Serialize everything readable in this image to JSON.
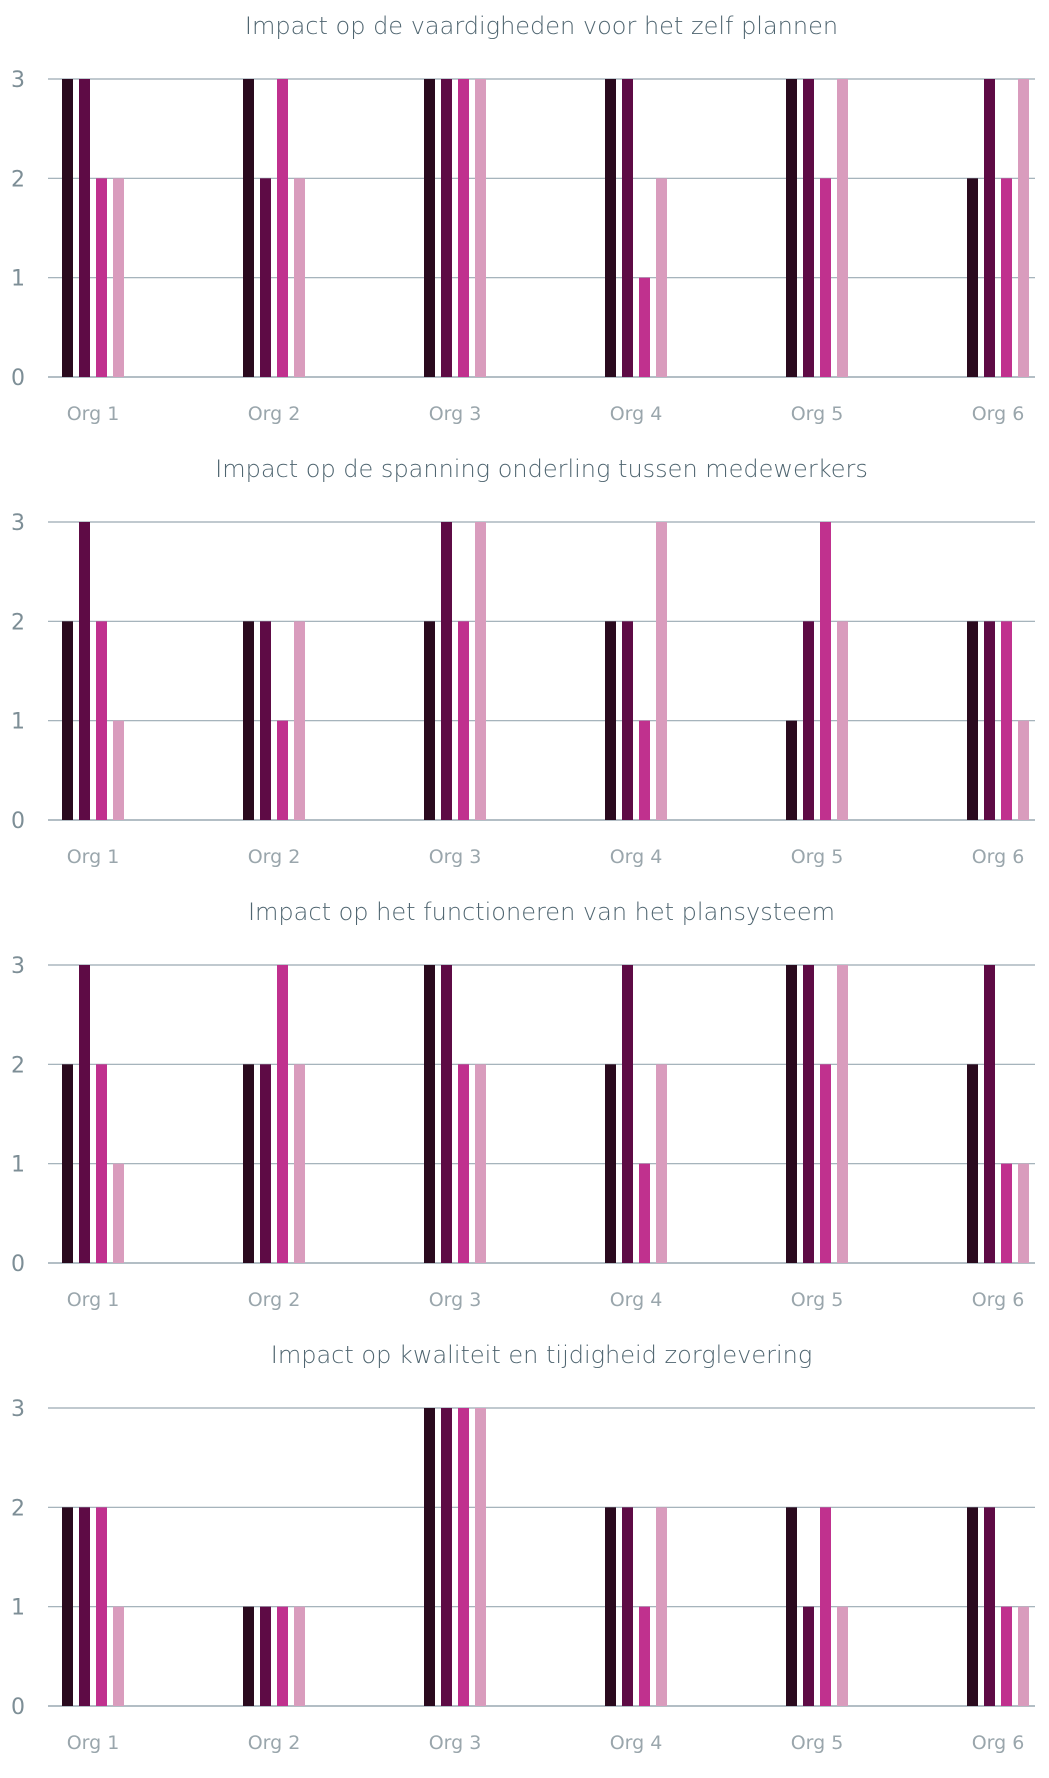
{
  "chart_data": [
    {
      "type": "bar",
      "title": "Impact op de vaardigheden voor het zelf plannen",
      "categories": [
        "Org 1",
        "Org 2",
        "Org 3",
        "Org 4",
        "Org 5",
        "Org 6"
      ],
      "yticks": [
        "0",
        "1",
        "2",
        "3"
      ],
      "ylim": [
        0,
        3
      ],
      "grid": true,
      "series": [
        {
          "values": [
            3,
            3,
            3,
            3,
            3,
            2
          ]
        },
        {
          "values": [
            3,
            2,
            3,
            3,
            3,
            3
          ]
        },
        {
          "values": [
            2,
            3,
            3,
            1,
            2,
            2
          ]
        },
        {
          "values": [
            2,
            2,
            3,
            2,
            3,
            3
          ]
        }
      ]
    },
    {
      "type": "bar",
      "title": "Impact op de spanning onderling tussen medewerkers",
      "categories": [
        "Org 1",
        "Org 2",
        "Org 3",
        "Org 4",
        "Org 5",
        "Org 6"
      ],
      "yticks": [
        "0",
        "1",
        "2",
        "3"
      ],
      "ylim": [
        0,
        3
      ],
      "grid": true,
      "series": [
        {
          "values": [
            2,
            2,
            2,
            2,
            1,
            2
          ]
        },
        {
          "values": [
            3,
            2,
            3,
            2,
            2,
            2
          ]
        },
        {
          "values": [
            2,
            1,
            2,
            1,
            3,
            2
          ]
        },
        {
          "values": [
            1,
            2,
            3,
            3,
            2,
            1
          ]
        }
      ]
    },
    {
      "type": "bar",
      "title": "Impact op het functioneren van het plansysteem",
      "categories": [
        "Org 1",
        "Org 2",
        "Org 3",
        "Org 4",
        "Org 5",
        "Org 6"
      ],
      "yticks": [
        "0",
        "1",
        "2",
        "3"
      ],
      "ylim": [
        0,
        3
      ],
      "grid": true,
      "series": [
        {
          "values": [
            2,
            2,
            3,
            2,
            3,
            2
          ]
        },
        {
          "values": [
            3,
            2,
            3,
            3,
            3,
            3
          ]
        },
        {
          "values": [
            2,
            3,
            2,
            1,
            2,
            1
          ]
        },
        {
          "values": [
            1,
            2,
            2,
            2,
            3,
            1
          ]
        }
      ]
    },
    {
      "type": "bar",
      "title": "Impact op kwaliteit en tijdigheid zorglevering",
      "categories": [
        "Org 1",
        "Org 2",
        "Org 3",
        "Org 4",
        "Org 5",
        "Org 6"
      ],
      "yticks": [
        "0",
        "1",
        "2",
        "3"
      ],
      "ylim": [
        0,
        3
      ],
      "grid": true,
      "series": [
        {
          "values": [
            2,
            1,
            3,
            2,
            2,
            2
          ]
        },
        {
          "values": [
            2,
            1,
            3,
            2,
            1,
            2
          ]
        },
        {
          "values": [
            2,
            1,
            3,
            1,
            2,
            1
          ]
        },
        {
          "values": [
            1,
            1,
            3,
            2,
            1,
            1
          ]
        }
      ]
    }
  ],
  "colors": {
    "series": [
      "#2a0a1e",
      "#5e0b45",
      "#c0318e",
      "#d99cbd"
    ],
    "grid": "#9aa9b2",
    "title_text": "#4f6570",
    "tick_text": "#7d8e96",
    "category_text": "#9aa6ac"
  }
}
